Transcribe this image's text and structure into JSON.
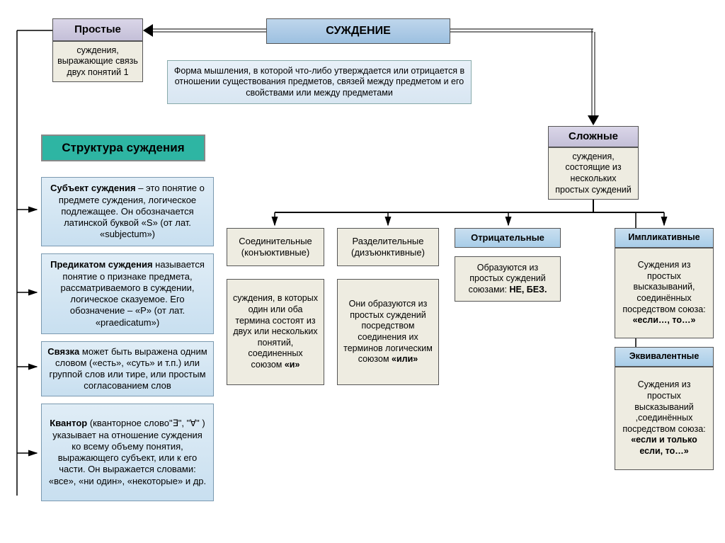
{
  "main": {
    "title": "СУЖДЕНИЕ",
    "definition": "Форма мышления, в которой что-либо утверждается или отрицается в отношении существования предметов, связей между предметом и его свойствами или между предметами"
  },
  "simple": {
    "title": "Простые",
    "desc": "суждения, выражающие связь двух понятий 1"
  },
  "complex": {
    "title": "Сложные",
    "desc": "суждения, состоящие из нескольких простых суждений"
  },
  "structure": {
    "title": "Структура суждения",
    "subject": "Субъект суждения – это понятие о предмете суждения, логическое подлежащее. Он обозначается латинской буквой «S» (от лат. «subjectum»)",
    "predicate": "Предикатом суждения называется понятие о признаке предмета, рассматриваемого в суждении, логическое сказуемое. Его обозначение – «P» (от лат. «praedicatum»)",
    "copula": "Связка может быть выражена одним словом («есть», «суть» и т.п.) или группой слов или тире, или простым согласованием слов",
    "quantor": "Квантор (кванторное слово\"∃\", \"∀\" ) указывает на отношение суждения ко всему объему понятия, выражающего субъект, или к его части. Он выражается словами: «все», «ни один», «некоторые» и др."
  },
  "conjunctive": {
    "title": "Соединительные (конъюктивные)",
    "desc": "суждения, в которых один или оба термина состоят из двух или нескольких понятий, соединенных союзом «и»"
  },
  "disjunctive": {
    "title": "Разделительные (дизъюнктивные)",
    "desc": "Они образуются из простых суждений посредством соединения их терминов логическим союзом «или»"
  },
  "negative": {
    "title": "Отрицательные",
    "desc": "Образуются из простых суждений союзами: НЕ, БЕЗ."
  },
  "implicative": {
    "title": "Импликативные",
    "desc": "Суждения  из простых высказываний, соединённых посредством союза: «если…, то…»"
  },
  "equivalent": {
    "title": "Эквивалентные",
    "desc": "Суждения из простых высказываний ,соединённых посредством союза: «если и только если, то…»"
  },
  "colors": {
    "purple": "#c4bfd8",
    "blue": "#a8cde8",
    "beige": "#eeece1",
    "teal": "#2eb5a3",
    "lightblue": "#d8e6f2"
  }
}
